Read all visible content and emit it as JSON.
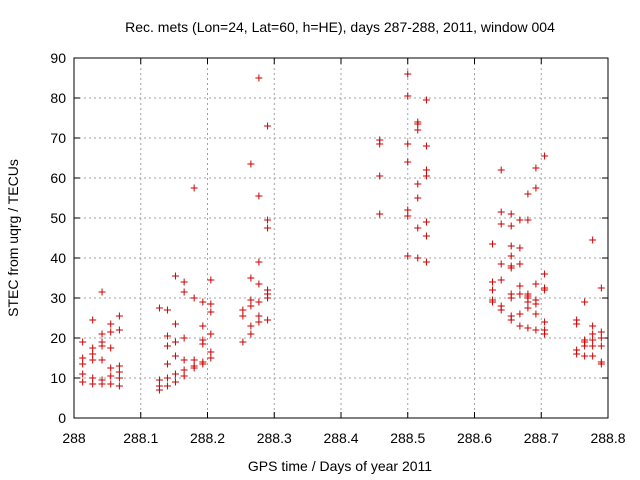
{
  "chart_data": {
    "type": "scatter",
    "title": "Rec. mets (Lon=24, Lat=60, h=HE), days 287-288, 2011, window 004",
    "xlabel": "GPS time / Days of year 2011",
    "ylabel": "STEC from uqrg / TECUs",
    "xlim": [
      288,
      288.8
    ],
    "ylim": [
      0,
      90
    ],
    "xticks": [
      288,
      288.1,
      288.2,
      288.3,
      288.4,
      288.5,
      288.6,
      288.7,
      288.8
    ],
    "xtick_labels": [
      "288",
      "288.1",
      "288.2",
      "288.3",
      "288.4",
      "288.5",
      "288.6",
      "288.7",
      "288.8"
    ],
    "yticks": [
      0,
      10,
      20,
      30,
      40,
      50,
      60,
      70,
      80,
      90
    ],
    "ytick_labels": [
      "0",
      "10",
      "20",
      "30",
      "40",
      "50",
      "60",
      "70",
      "80",
      "90"
    ],
    "grid": true,
    "marker": "+",
    "marker_color": "#cc0000",
    "series": [
      {
        "name": "STEC",
        "points": [
          [
            288.013,
            19
          ],
          [
            288.013,
            15
          ],
          [
            288.013,
            13.5
          ],
          [
            288.013,
            11
          ],
          [
            288.013,
            9
          ],
          [
            288.028,
            24.5
          ],
          [
            288.028,
            17.5
          ],
          [
            288.028,
            16
          ],
          [
            288.028,
            14.5
          ],
          [
            288.028,
            10
          ],
          [
            288.028,
            8.5
          ],
          [
            288.042,
            31.5
          ],
          [
            288.042,
            21
          ],
          [
            288.042,
            19
          ],
          [
            288.042,
            18
          ],
          [
            288.042,
            14.5
          ],
          [
            288.042,
            9.5
          ],
          [
            288.042,
            8.5
          ],
          [
            288.055,
            23.5
          ],
          [
            288.055,
            21.5
          ],
          [
            288.055,
            17.5
          ],
          [
            288.055,
            12.5
          ],
          [
            288.055,
            10.5
          ],
          [
            288.055,
            8.5
          ],
          [
            288.068,
            25.5
          ],
          [
            288.068,
            22
          ],
          [
            288.068,
            13
          ],
          [
            288.068,
            11.5
          ],
          [
            288.068,
            10
          ],
          [
            288.068,
            8
          ],
          [
            288.128,
            27.5
          ],
          [
            288.128,
            9.5
          ],
          [
            288.128,
            8
          ],
          [
            288.128,
            7
          ],
          [
            288.14,
            27
          ],
          [
            288.14,
            20.5
          ],
          [
            288.14,
            18
          ],
          [
            288.14,
            13.5
          ],
          [
            288.14,
            10
          ],
          [
            288.14,
            8
          ],
          [
            288.152,
            35.5
          ],
          [
            288.152,
            23.5
          ],
          [
            288.152,
            19
          ],
          [
            288.152,
            15.5
          ],
          [
            288.152,
            11
          ],
          [
            288.152,
            9
          ],
          [
            288.165,
            34
          ],
          [
            288.165,
            31.5
          ],
          [
            288.165,
            20
          ],
          [
            288.165,
            14.5
          ],
          [
            288.165,
            12
          ],
          [
            288.165,
            10.5
          ],
          [
            288.18,
            57.5
          ],
          [
            288.18,
            30
          ],
          [
            288.18,
            14.5
          ],
          [
            288.18,
            13
          ],
          [
            288.18,
            12.5
          ],
          [
            288.193,
            29
          ],
          [
            288.193,
            23
          ],
          [
            288.193,
            19.5
          ],
          [
            288.193,
            18.5
          ],
          [
            288.193,
            14
          ],
          [
            288.193,
            13.5
          ],
          [
            288.205,
            34.5
          ],
          [
            288.205,
            28.5
          ],
          [
            288.205,
            26.5
          ],
          [
            288.205,
            21
          ],
          [
            288.205,
            16.5
          ],
          [
            288.205,
            15
          ],
          [
            288.253,
            27
          ],
          [
            288.253,
            25.5
          ],
          [
            288.253,
            19
          ],
          [
            288.265,
            63.5
          ],
          [
            288.265,
            35
          ],
          [
            288.265,
            29.5
          ],
          [
            288.265,
            28
          ],
          [
            288.265,
            23
          ],
          [
            288.265,
            21
          ],
          [
            288.277,
            85
          ],
          [
            288.277,
            55.5
          ],
          [
            288.277,
            39
          ],
          [
            288.277,
            33.5
          ],
          [
            288.277,
            29
          ],
          [
            288.277,
            25.5
          ],
          [
            288.277,
            24
          ],
          [
            288.29,
            73
          ],
          [
            288.29,
            49.5
          ],
          [
            288.29,
            47.5
          ],
          [
            288.29,
            32
          ],
          [
            288.29,
            31
          ],
          [
            288.29,
            30
          ],
          [
            288.29,
            24.5
          ],
          [
            288.458,
            69.5
          ],
          [
            288.458,
            68.5
          ],
          [
            288.458,
            60.5
          ],
          [
            288.458,
            51
          ],
          [
            288.5,
            86
          ],
          [
            288.5,
            80.5
          ],
          [
            288.5,
            68.5
          ],
          [
            288.5,
            64
          ],
          [
            288.5,
            52
          ],
          [
            288.5,
            50.5
          ],
          [
            288.5,
            40.5
          ],
          [
            288.515,
            74
          ],
          [
            288.515,
            73.5
          ],
          [
            288.515,
            72
          ],
          [
            288.515,
            58.5
          ],
          [
            288.515,
            55
          ],
          [
            288.515,
            47.5
          ],
          [
            288.515,
            40
          ],
          [
            288.528,
            79.5
          ],
          [
            288.528,
            68
          ],
          [
            288.528,
            62
          ],
          [
            288.528,
            60.5
          ],
          [
            288.528,
            49
          ],
          [
            288.528,
            45.5
          ],
          [
            288.528,
            39
          ],
          [
            288.627,
            43.5
          ],
          [
            288.627,
            34
          ],
          [
            288.627,
            32
          ],
          [
            288.627,
            29.5
          ],
          [
            288.627,
            29
          ],
          [
            288.64,
            62
          ],
          [
            288.64,
            51.5
          ],
          [
            288.64,
            48.5
          ],
          [
            288.64,
            38.5
          ],
          [
            288.64,
            34.5
          ],
          [
            288.64,
            28
          ],
          [
            288.64,
            27
          ],
          [
            288.655,
            51
          ],
          [
            288.655,
            48
          ],
          [
            288.655,
            43
          ],
          [
            288.655,
            40.5
          ],
          [
            288.655,
            38
          ],
          [
            288.655,
            37.5
          ],
          [
            288.655,
            31
          ],
          [
            288.655,
            30
          ],
          [
            288.655,
            25.5
          ],
          [
            288.655,
            24.5
          ],
          [
            288.668,
            49.5
          ],
          [
            288.668,
            42.5
          ],
          [
            288.668,
            38.5
          ],
          [
            288.668,
            33
          ],
          [
            288.668,
            31
          ],
          [
            288.668,
            26
          ],
          [
            288.668,
            23
          ],
          [
            288.68,
            56
          ],
          [
            288.68,
            49.5
          ],
          [
            288.68,
            31
          ],
          [
            288.68,
            30.5
          ],
          [
            288.68,
            30
          ],
          [
            288.68,
            29
          ],
          [
            288.68,
            27.5
          ],
          [
            288.68,
            22.5
          ],
          [
            288.692,
            62.5
          ],
          [
            288.692,
            57.5
          ],
          [
            288.692,
            33.5
          ],
          [
            288.692,
            29.5
          ],
          [
            288.692,
            28.5
          ],
          [
            288.692,
            26
          ],
          [
            288.692,
            22
          ],
          [
            288.705,
            65.5
          ],
          [
            288.705,
            36
          ],
          [
            288.705,
            32.5
          ],
          [
            288.705,
            32
          ],
          [
            288.705,
            24
          ],
          [
            288.705,
            22
          ],
          [
            288.705,
            21
          ],
          [
            288.753,
            24.5
          ],
          [
            288.753,
            23.5
          ],
          [
            288.753,
            17
          ],
          [
            288.753,
            16
          ],
          [
            288.765,
            29
          ],
          [
            288.765,
            19.5
          ],
          [
            288.765,
            19
          ],
          [
            288.765,
            18
          ],
          [
            288.765,
            15.5
          ],
          [
            288.777,
            44.5
          ],
          [
            288.777,
            23
          ],
          [
            288.777,
            21
          ],
          [
            288.777,
            19.5
          ],
          [
            288.777,
            18
          ],
          [
            288.777,
            15.5
          ],
          [
            288.79,
            32.5
          ],
          [
            288.79,
            21.5
          ],
          [
            288.79,
            20
          ],
          [
            288.79,
            18
          ],
          [
            288.79,
            14
          ],
          [
            288.79,
            13.5
          ]
        ]
      }
    ]
  }
}
